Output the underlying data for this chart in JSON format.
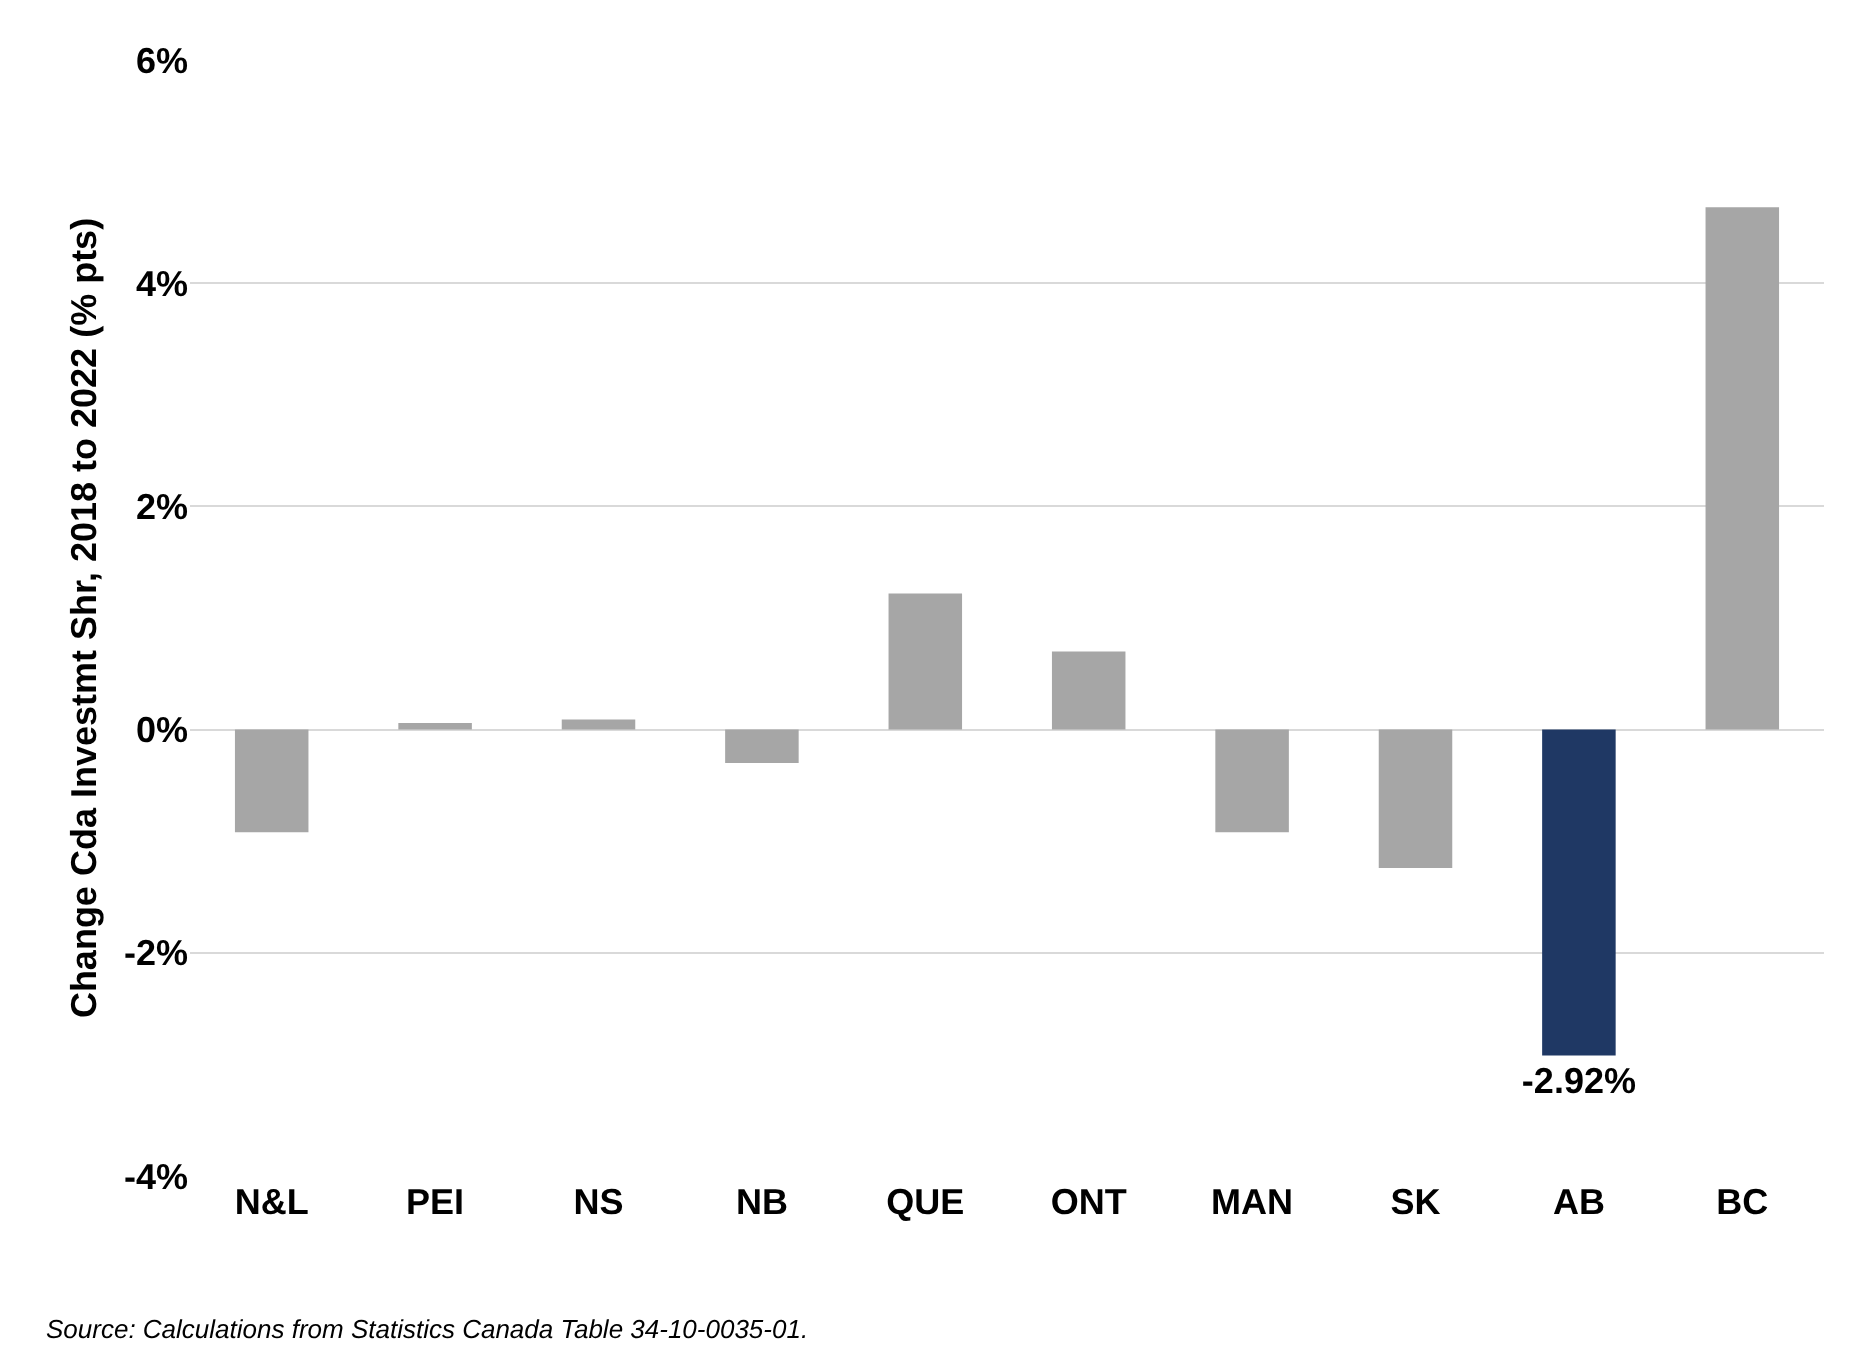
{
  "chart_data": {
    "type": "bar",
    "ylabel": "Change Cda Investmt Shr, 2018 to 2022 (% pts)",
    "categories": [
      "N&L",
      "PEI",
      "NS",
      "NB",
      "QUE",
      "ONT",
      "MAN",
      "SK",
      "AB",
      "BC"
    ],
    "values": [
      -0.92,
      0.06,
      0.09,
      -0.3,
      1.22,
      0.7,
      -0.92,
      -1.24,
      -2.92,
      4.68
    ],
    "colors": [
      "#a6a6a6",
      "#a6a6a6",
      "#a6a6a6",
      "#a6a6a6",
      "#a6a6a6",
      "#a6a6a6",
      "#a6a6a6",
      "#a6a6a6",
      "#1f3864",
      "#a6a6a6"
    ],
    "value_labels": [
      null,
      null,
      null,
      null,
      null,
      null,
      null,
      null,
      "-2.92%",
      null
    ],
    "ylim": [
      -4,
      6
    ],
    "yticks": [
      {
        "value": -4,
        "label": "-4%"
      },
      {
        "value": -2,
        "label": "-2%"
      },
      {
        "value": 0,
        "label": "0%"
      },
      {
        "value": 2,
        "label": "2%"
      },
      {
        "value": 4,
        "label": "4%"
      },
      {
        "value": 6,
        "label": "6%"
      }
    ],
    "grid": "y",
    "annotations": [
      "Source: Calculations from Statistics Canada Table 34-10-0035-01."
    ]
  }
}
